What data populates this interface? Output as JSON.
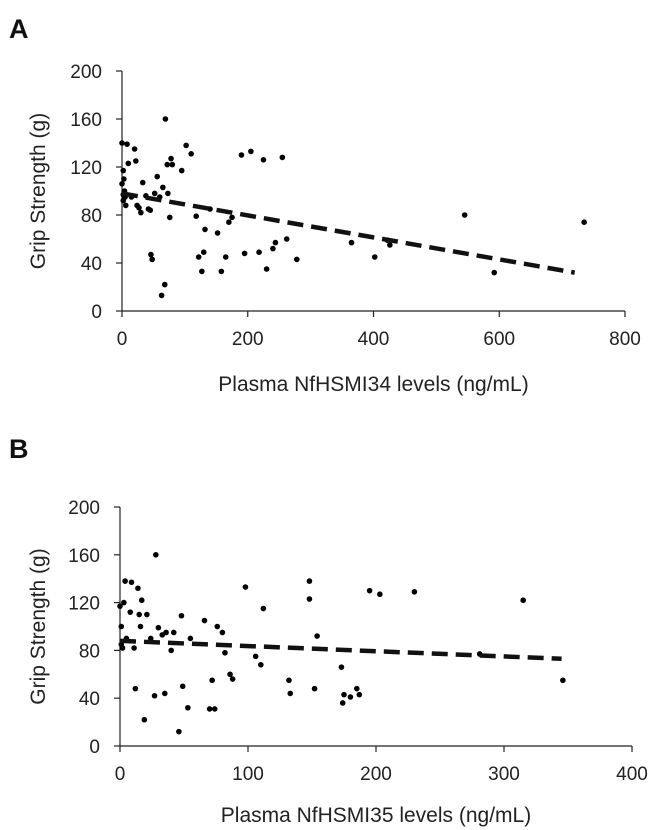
{
  "chart_data": [
    {
      "panel": "A",
      "type": "scatter",
      "xlabel": "Plasma NfHSMI34 levels (ng/mL)",
      "ylabel": "Grip Strength (g)",
      "xlim": [
        0,
        800
      ],
      "ylim": [
        0,
        200
      ],
      "xticks": [
        0,
        200,
        400,
        600,
        800
      ],
      "yticks": [
        0,
        40,
        80,
        120,
        160,
        200
      ],
      "trendline": {
        "x": [
          0,
          720
        ],
        "y": [
          98,
          32
        ]
      },
      "points": [
        [
          0,
          140
        ],
        [
          2,
          117
        ],
        [
          3,
          110
        ],
        [
          0,
          106
        ],
        [
          4,
          100
        ],
        [
          2,
          97
        ],
        [
          5,
          95
        ],
        [
          2,
          92
        ],
        [
          6,
          88
        ],
        [
          8,
          139
        ],
        [
          10,
          123
        ],
        [
          15,
          95
        ],
        [
          20,
          135
        ],
        [
          22,
          125
        ],
        [
          24,
          88
        ],
        [
          27,
          86
        ],
        [
          30,
          82
        ],
        [
          33,
          107
        ],
        [
          38,
          96
        ],
        [
          42,
          85
        ],
        [
          45,
          84
        ],
        [
          46,
          47
        ],
        [
          48,
          43
        ],
        [
          52,
          98
        ],
        [
          56,
          112
        ],
        [
          60,
          95
        ],
        [
          63,
          13
        ],
        [
          65,
          103
        ],
        [
          68,
          22
        ],
        [
          69,
          160
        ],
        [
          72,
          122
        ],
        [
          73,
          98
        ],
        [
          76,
          78
        ],
        [
          78,
          127
        ],
        [
          80,
          122
        ],
        [
          95,
          117
        ],
        [
          102,
          138
        ],
        [
          110,
          131
        ],
        [
          118,
          79
        ],
        [
          122,
          45
        ],
        [
          127,
          33
        ],
        [
          130,
          49
        ],
        [
          132,
          68
        ],
        [
          140,
          85
        ],
        [
          152,
          65
        ],
        [
          158,
          33
        ],
        [
          165,
          45
        ],
        [
          170,
          74
        ],
        [
          175,
          78
        ],
        [
          190,
          130
        ],
        [
          195,
          48
        ],
        [
          205,
          133
        ],
        [
          218,
          49
        ],
        [
          225,
          126
        ],
        [
          230,
          35
        ],
        [
          240,
          52
        ],
        [
          244,
          57
        ],
        [
          255,
          128
        ],
        [
          262,
          60
        ],
        [
          278,
          43
        ],
        [
          365,
          57
        ],
        [
          402,
          45
        ],
        [
          422,
          59
        ],
        [
          426,
          55
        ],
        [
          545,
          80
        ],
        [
          592,
          32
        ],
        [
          735,
          74
        ]
      ]
    },
    {
      "panel": "B",
      "type": "scatter",
      "xlabel": "Plasma NfHSMI35 levels (ng/mL)",
      "ylabel": "Grip Strength (g)",
      "xlim": [
        0,
        400
      ],
      "ylim": [
        0,
        200
      ],
      "xticks": [
        0,
        100,
        200,
        300,
        400
      ],
      "yticks": [
        0,
        40,
        80,
        120,
        160,
        200
      ],
      "trendline": {
        "x": [
          0,
          345
        ],
        "y": [
          88,
          73
        ]
      },
      "points": [
        [
          0,
          117
        ],
        [
          1,
          100
        ],
        [
          1,
          85
        ],
        [
          2,
          82
        ],
        [
          3,
          120
        ],
        [
          4,
          138
        ],
        [
          5,
          90
        ],
        [
          8,
          112
        ],
        [
          9,
          137
        ],
        [
          11,
          82
        ],
        [
          12,
          48
        ],
        [
          14,
          132
        ],
        [
          15,
          110
        ],
        [
          16,
          100
        ],
        [
          17,
          122
        ],
        [
          19,
          22
        ],
        [
          21,
          110
        ],
        [
          24,
          90
        ],
        [
          27,
          42
        ],
        [
          28,
          160
        ],
        [
          30,
          99
        ],
        [
          33,
          93
        ],
        [
          35,
          44
        ],
        [
          36,
          95
        ],
        [
          40,
          80
        ],
        [
          42,
          95
        ],
        [
          46,
          12
        ],
        [
          48,
          109
        ],
        [
          49,
          50
        ],
        [
          53,
          32
        ],
        [
          55,
          90
        ],
        [
          66,
          105
        ],
        [
          70,
          31
        ],
        [
          72,
          55
        ],
        [
          74,
          31
        ],
        [
          76,
          100
        ],
        [
          80,
          95
        ],
        [
          82,
          78
        ],
        [
          86,
          60
        ],
        [
          88,
          56
        ],
        [
          98,
          133
        ],
        [
          106,
          75
        ],
        [
          110,
          68
        ],
        [
          112,
          115
        ],
        [
          132,
          55
        ],
        [
          133,
          44
        ],
        [
          148,
          138
        ],
        [
          148,
          123
        ],
        [
          152,
          48
        ],
        [
          154,
          92
        ],
        [
          173,
          66
        ],
        [
          174,
          36
        ],
        [
          175,
          43
        ],
        [
          180,
          41
        ],
        [
          185,
          48
        ],
        [
          187,
          43
        ],
        [
          195,
          130
        ],
        [
          203,
          127
        ],
        [
          230,
          129
        ],
        [
          281,
          77
        ],
        [
          315,
          122
        ],
        [
          346,
          55
        ]
      ]
    }
  ],
  "panels": [
    {
      "letter": "A"
    },
    {
      "letter": "B"
    }
  ]
}
